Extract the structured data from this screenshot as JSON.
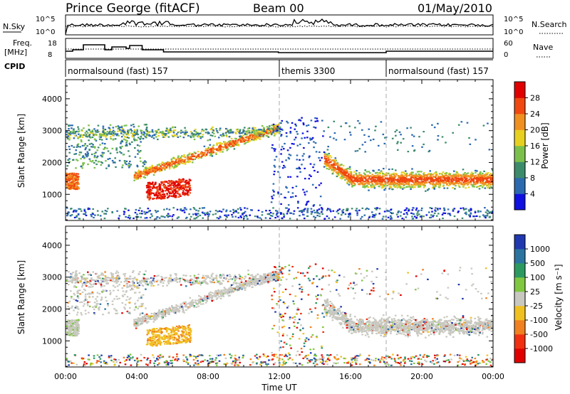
{
  "header": {
    "station": "Prince George (fitACF)",
    "beam": "Beam 00",
    "date": "01/May/2010"
  },
  "strip_labels": {
    "nsky": "N.Sky",
    "nsky_ticks": [
      "10^5",
      "10^0"
    ],
    "nsearch": "N.Search",
    "freq_line1": "Freq.",
    "freq_line2": "[MHz]",
    "freq_ticks": [
      "18",
      "8"
    ],
    "nave_ticks": [
      "60",
      "0"
    ],
    "nave": "Nave",
    "cpid": "CPID"
  },
  "cpid_segments": [
    {
      "label": "normalsound (fast) 157",
      "start_hour": 0
    },
    {
      "label": "themis 3300",
      "start_hour": 12
    },
    {
      "label": "normalsound (fast) 157",
      "start_hour": 18
    }
  ],
  "axes": {
    "ylabel": "Slant Range [km]",
    "xlabel": "Time UT",
    "x_ticks": [
      "00:00",
      "04:00",
      "08:00",
      "12:00",
      "16:00",
      "20:00",
      "00:00"
    ],
    "y_ticks": [
      "1000",
      "2000",
      "3000",
      "4000"
    ]
  },
  "colorbars": {
    "power": {
      "label": "Power [dB]",
      "ticks": [
        "4",
        "8",
        "12",
        "16",
        "20",
        "24",
        "28"
      ],
      "colors": [
        "#1010e0",
        "#2c6ab0",
        "#3c8c6c",
        "#7cc04c",
        "#e8d020",
        "#f09020",
        "#f04810",
        "#e00000"
      ]
    },
    "velocity": {
      "label": "Velocity [m s⁻¹]",
      "ticks": [
        "1000",
        "500",
        "100",
        "25",
        "-25",
        "-100",
        "-500",
        "-1000"
      ],
      "colors": [
        "#2038b0",
        "#2c74a0",
        "#2c9a60",
        "#80c840",
        "#c8c8c0",
        "#f0c020",
        "#f08020",
        "#f03010",
        "#e00000"
      ]
    }
  },
  "chart_data": [
    {
      "type": "heatmap",
      "title": "Power",
      "xlabel": "Time UT",
      "ylabel": "Slant Range [km]",
      "x_range_hours": [
        0,
        24
      ],
      "ylim": [
        180,
        4600
      ],
      "colorbar": "Power [dB]",
      "features": [
        {
          "t0": 0.0,
          "t1": 0.6,
          "r0": 1150,
          "r1": 1650,
          "value_db": 22
        },
        {
          "t0": 4.5,
          "t1": 7.0,
          "r0": 750,
          "r1": 1400,
          "value_db": 28
        },
        {
          "t0": 4.0,
          "t1": 12.0,
          "r0": 1500,
          "r1": 3200,
          "value_db": 18
        },
        {
          "t0": 15.0,
          "t1": 24.0,
          "r0": 1100,
          "r1": 1700,
          "value_db": 18
        },
        {
          "t0": 0.0,
          "t1": 4.0,
          "r0": 2900,
          "r1": 3100,
          "value_db": 10
        }
      ]
    },
    {
      "type": "heatmap",
      "title": "Velocity",
      "xlabel": "Time UT",
      "ylabel": "Slant Range [km]",
      "x_range_hours": [
        0,
        24
      ],
      "ylim": [
        180,
        4600
      ],
      "colorbar": "Velocity [m s⁻¹]",
      "features": [
        {
          "t0": 4.5,
          "t1": 7.0,
          "r0": 750,
          "r1": 1400,
          "value_ms": -100
        },
        {
          "t0": 15.0,
          "t1": 24.0,
          "r0": 1000,
          "r1": 2000,
          "value_ms": 0
        },
        {
          "t0": 4.0,
          "t1": 12.0,
          "r0": 1500,
          "r1": 3300,
          "value_ms": 0
        }
      ]
    }
  ]
}
